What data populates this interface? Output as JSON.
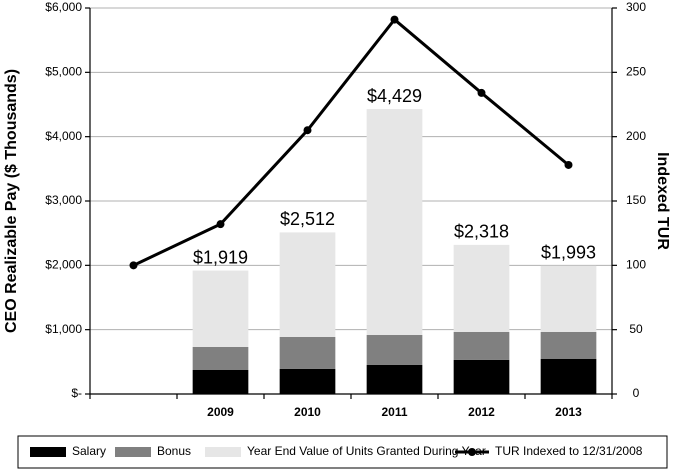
{
  "chart_data": {
    "type": "bar",
    "y_label": "CEO Realizable Pay ($ Thousands)",
    "y2_label": "Indexed TUR",
    "categories": [
      null,
      "2009",
      "2010",
      "2011",
      "2012",
      "2013"
    ],
    "series": [
      {
        "name": "Salary",
        "color": "#000000",
        "values": [
          null,
          373,
          389,
          451,
          529,
          544
        ]
      },
      {
        "name": "Bonus",
        "color": "#808080",
        "values": [
          null,
          358,
          497,
          466,
          435,
          420
        ]
      },
      {
        "name": "Year End Value of Units Granted During Year",
        "color": "#e6e6e6",
        "values": [
          null,
          1188,
          1626,
          3512,
          1354,
          1029
        ]
      },
      {
        "name": "TUR Indexed to 12/31/2008",
        "color": "#000000",
        "type": "line",
        "axis": "y2",
        "values": [
          100,
          132,
          205,
          291,
          234,
          178
        ]
      }
    ],
    "totals": [
      null,
      1919,
      2512,
      4429,
      2318,
      1993
    ],
    "total_labels": [
      null,
      "$1,919",
      "$2,512",
      "$4,429",
      "$2,318",
      "$1,993"
    ],
    "ylim": [
      0,
      6000
    ],
    "yticks": [
      {
        "value": 0,
        "label": "$-"
      },
      {
        "value": 1000,
        "label": "$1,000"
      },
      {
        "value": 2000,
        "label": "$2,000"
      },
      {
        "value": 3000,
        "label": "$3,000"
      },
      {
        "value": 4000,
        "label": "$4,000"
      },
      {
        "value": 5000,
        "label": "$5,000"
      },
      {
        "value": 6000,
        "label": "$6,000"
      }
    ],
    "y2lim": [
      0,
      300
    ],
    "y2ticks": [
      0,
      50,
      100,
      150,
      200,
      250,
      300
    ],
    "grid": true,
    "legend": "bottom"
  }
}
